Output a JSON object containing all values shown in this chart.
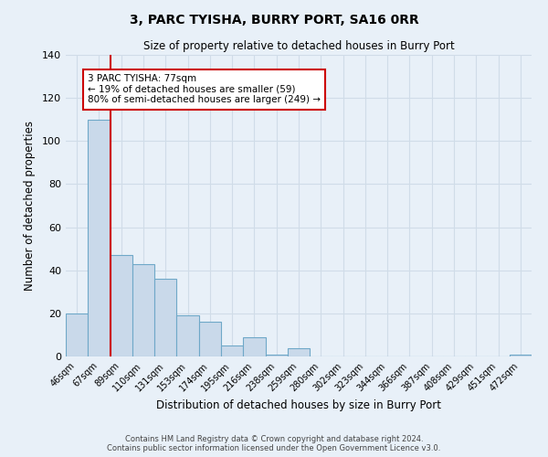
{
  "title": "3, PARC TYISHA, BURRY PORT, SA16 0RR",
  "subtitle": "Size of property relative to detached houses in Burry Port",
  "xlabel": "Distribution of detached houses by size in Burry Port",
  "ylabel": "Number of detached properties",
  "bar_labels": [
    "46sqm",
    "67sqm",
    "89sqm",
    "110sqm",
    "131sqm",
    "153sqm",
    "174sqm",
    "195sqm",
    "216sqm",
    "238sqm",
    "259sqm",
    "280sqm",
    "302sqm",
    "323sqm",
    "344sqm",
    "366sqm",
    "387sqm",
    "408sqm",
    "429sqm",
    "451sqm",
    "472sqm"
  ],
  "bar_values": [
    20,
    110,
    47,
    43,
    36,
    19,
    16,
    5,
    9,
    1,
    4,
    0,
    0,
    0,
    0,
    0,
    0,
    0,
    0,
    0,
    1
  ],
  "bar_color": "#c9d9ea",
  "bar_edge_color": "#6fa8c8",
  "bg_color": "#e8f0f8",
  "grid_color": "#d0dce8",
  "annotation_text": "3 PARC TYISHA: 77sqm\n← 19% of detached houses are smaller (59)\n80% of semi-detached houses are larger (249) →",
  "annotation_box_color": "#ffffff",
  "annotation_border_color": "#cc0000",
  "vline_x": 1.5,
  "vline_color": "#cc0000",
  "ylim": [
    0,
    140
  ],
  "yticks": [
    0,
    20,
    40,
    60,
    80,
    100,
    120,
    140
  ],
  "footer_line1": "Contains HM Land Registry data © Crown copyright and database right 2024.",
  "footer_line2": "Contains public sector information licensed under the Open Government Licence v3.0."
}
